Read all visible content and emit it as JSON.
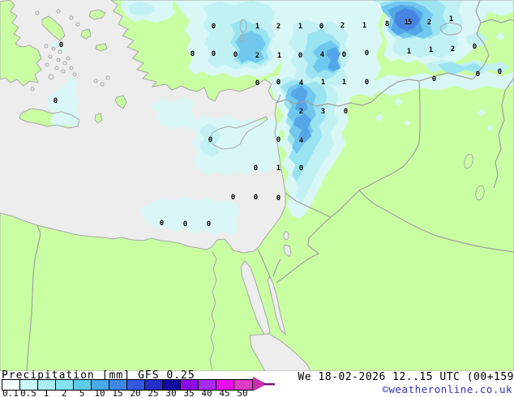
{
  "legend": {
    "title": "Precipitation",
    "unit": "[mm]",
    "model": "GFS 0.25",
    "scale_values": [
      "0.1",
      "0.5",
      "1",
      "2",
      "5",
      "10",
      "15",
      "20",
      "25",
      "30",
      "35",
      "40",
      "45",
      "50"
    ],
    "scale_colors": [
      "#F6FFFF",
      "#C8F8F8",
      "#A8F0F2",
      "#84E4F0",
      "#60CCEC",
      "#48AAE8",
      "#3E88E4",
      "#3458E0",
      "#2530C8",
      "#140CA0",
      "#8C0CE8",
      "#A82CF4",
      "#E80CF0",
      "#E03CC8"
    ],
    "arrow_color": "#CC2CAC",
    "arrow_tip_color": "#7A1474"
  },
  "footer": {
    "datetime": "We 18-02-2026 12..15 UTC (00+159",
    "copyright": "©weatheronline.co.uk"
  },
  "map": {
    "colors": {
      "sea": "#EDEDED",
      "land": "#C9FFA2",
      "coast": "#A8A8A8",
      "border": "#A0A0A0",
      "precip_levels": [
        "#D9F7F6",
        "#C2F1F4",
        "#9AE4F2",
        "#70C8EE",
        "#54A6E8",
        "#4684E4"
      ]
    },
    "values": [
      [
        263,
        33,
        "0"
      ],
      [
        317,
        33,
        "1"
      ],
      [
        343,
        33,
        "2"
      ],
      [
        370,
        33,
        "1"
      ],
      [
        396,
        33,
        "0"
      ],
      [
        422,
        32,
        "2"
      ],
      [
        449,
        32,
        "1"
      ],
      [
        477,
        30,
        "8"
      ],
      [
        503,
        28,
        "15"
      ],
      [
        529,
        28,
        "2"
      ],
      [
        556,
        24,
        "1"
      ],
      [
        75,
        56,
        "0"
      ],
      [
        237,
        67,
        "0"
      ],
      [
        263,
        67,
        "0"
      ],
      [
        290,
        68,
        "0"
      ],
      [
        317,
        69,
        "2"
      ],
      [
        344,
        69,
        "1"
      ],
      [
        370,
        69,
        "0"
      ],
      [
        397,
        68,
        "4"
      ],
      [
        424,
        68,
        "0"
      ],
      [
        452,
        66,
        "0"
      ],
      [
        504,
        64,
        "1"
      ],
      [
        531,
        62,
        "1"
      ],
      [
        558,
        61,
        "2"
      ],
      [
        585,
        58,
        "0"
      ],
      [
        317,
        103,
        "0"
      ],
      [
        343,
        102,
        "0"
      ],
      [
        371,
        103,
        "4"
      ],
      [
        398,
        102,
        "1"
      ],
      [
        424,
        102,
        "1"
      ],
      [
        452,
        102,
        "0"
      ],
      [
        535,
        98,
        "0"
      ],
      [
        589,
        92,
        "0"
      ],
      [
        616,
        89,
        "0"
      ],
      [
        68,
        125,
        "0"
      ],
      [
        371,
        138,
        "2"
      ],
      [
        398,
        138,
        "3"
      ],
      [
        426,
        138,
        "0"
      ],
      [
        259,
        173,
        "0"
      ],
      [
        343,
        173,
        "0"
      ],
      [
        371,
        174,
        "4"
      ],
      [
        315,
        208,
        "0"
      ],
      [
        343,
        208,
        "1"
      ],
      [
        371,
        208,
        "0"
      ],
      [
        287,
        244,
        "0"
      ],
      [
        315,
        244,
        "0"
      ],
      [
        343,
        245,
        "0"
      ],
      [
        199,
        276,
        "0"
      ],
      [
        228,
        277,
        "0"
      ],
      [
        257,
        277,
        "0"
      ]
    ]
  }
}
